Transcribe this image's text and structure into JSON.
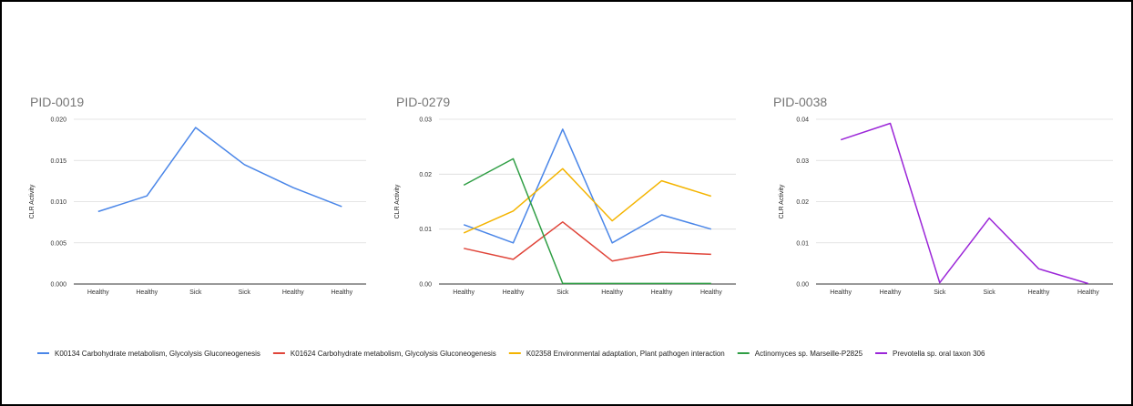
{
  "colors": {
    "blue": "#4a86e8",
    "red": "#e0453a",
    "yellow": "#f4b400",
    "green": "#2f9e44",
    "purple": "#9b26d8",
    "grid": "#dcdcdc",
    "baseline": "#333333"
  },
  "legend": [
    {
      "label": "K00134 Carbohydrate metabolism, Glycolysis  Gluconeogenesis",
      "color": "#4a86e8"
    },
    {
      "label": "K01624 Carbohydrate metabolism, Glycolysis  Gluconeogenesis",
      "color": "#e0453a"
    },
    {
      "label": "K02358 Environmental adaptation, Plant pathogen interaction",
      "color": "#f4b400"
    },
    {
      "label": "Actinomyces sp. Marseille-P2825",
      "color": "#2f9e44"
    },
    {
      "label": "Prevotella sp. oral taxon 306",
      "color": "#9b26d8"
    }
  ],
  "chart_data": [
    {
      "type": "line",
      "title": "PID-0019",
      "xlabel": "",
      "ylabel": "CLR Activity",
      "categories": [
        "Healthy",
        "Healthy",
        "Sick",
        "Sick",
        "Healthy",
        "Healthy"
      ],
      "ylim": [
        0,
        0.02
      ],
      "yticks": [
        "0.000",
        "0.005",
        "0.010",
        "0.015",
        "0.020"
      ],
      "grid": true,
      "series": [
        {
          "legend_index": 0,
          "color": "#4a86e8",
          "values": [
            0.0088,
            0.0107,
            0.019,
            0.0145,
            0.0117,
            0.0094
          ]
        }
      ]
    },
    {
      "type": "line",
      "title": "PID-0279",
      "xlabel": "",
      "ylabel": "CLR Activity",
      "categories": [
        "Healthy",
        "Healthy",
        "Sick",
        "Healthy",
        "Healthy",
        "Healthy"
      ],
      "ylim": [
        0,
        0.03
      ],
      "yticks": [
        "0.00",
        "0.01",
        "0.02",
        "0.03"
      ],
      "grid": true,
      "series": [
        {
          "legend_index": 0,
          "color": "#4a86e8",
          "values": [
            0.0108,
            0.0075,
            0.0282,
            0.0075,
            0.0126,
            0.01
          ]
        },
        {
          "legend_index": 1,
          "color": "#e0453a",
          "values": [
            0.0065,
            0.0045,
            0.0113,
            0.0042,
            0.0058,
            0.0054
          ]
        },
        {
          "legend_index": 2,
          "color": "#f4b400",
          "values": [
            0.0093,
            0.0133,
            0.021,
            0.0115,
            0.0188,
            0.016
          ]
        },
        {
          "legend_index": 3,
          "color": "#2f9e44",
          "values": [
            0.018,
            0.0228,
            0.0001,
            0.0001,
            0.0001,
            0.0001
          ]
        }
      ]
    },
    {
      "type": "line",
      "title": "PID-0038",
      "xlabel": "",
      "ylabel": "CLR Activity",
      "categories": [
        "Healthy",
        "Healthy",
        "Sick",
        "Sick",
        "Healthy",
        "Healthy"
      ],
      "ylim": [
        0,
        0.04
      ],
      "yticks": [
        "0.00",
        "0.01",
        "0.02",
        "0.03",
        "0.04"
      ],
      "grid": true,
      "series": [
        {
          "legend_index": 4,
          "color": "#9b26d8",
          "values": [
            0.035,
            0.039,
            0.0003,
            0.016,
            0.0037,
            0.0001
          ]
        }
      ]
    }
  ]
}
